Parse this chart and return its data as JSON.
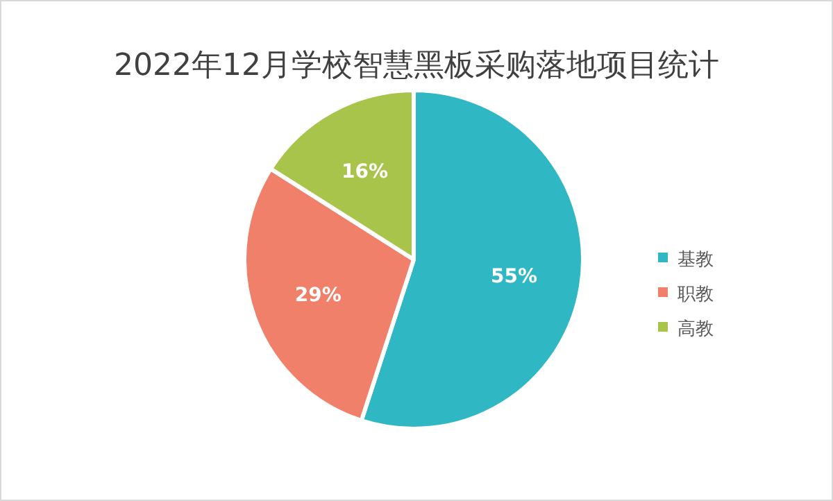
{
  "chart_data": {
    "type": "pie",
    "title": "2022年12月学校智慧黑板采购落地项目统计",
    "categories": [
      "基教",
      "职教",
      "高教"
    ],
    "values": [
      55,
      29,
      16
    ],
    "colors": [
      "#2fb8c4",
      "#f0806a",
      "#a9c44a"
    ],
    "value_labels": [
      "55%",
      "29%",
      "16%"
    ],
    "legend": "right"
  }
}
